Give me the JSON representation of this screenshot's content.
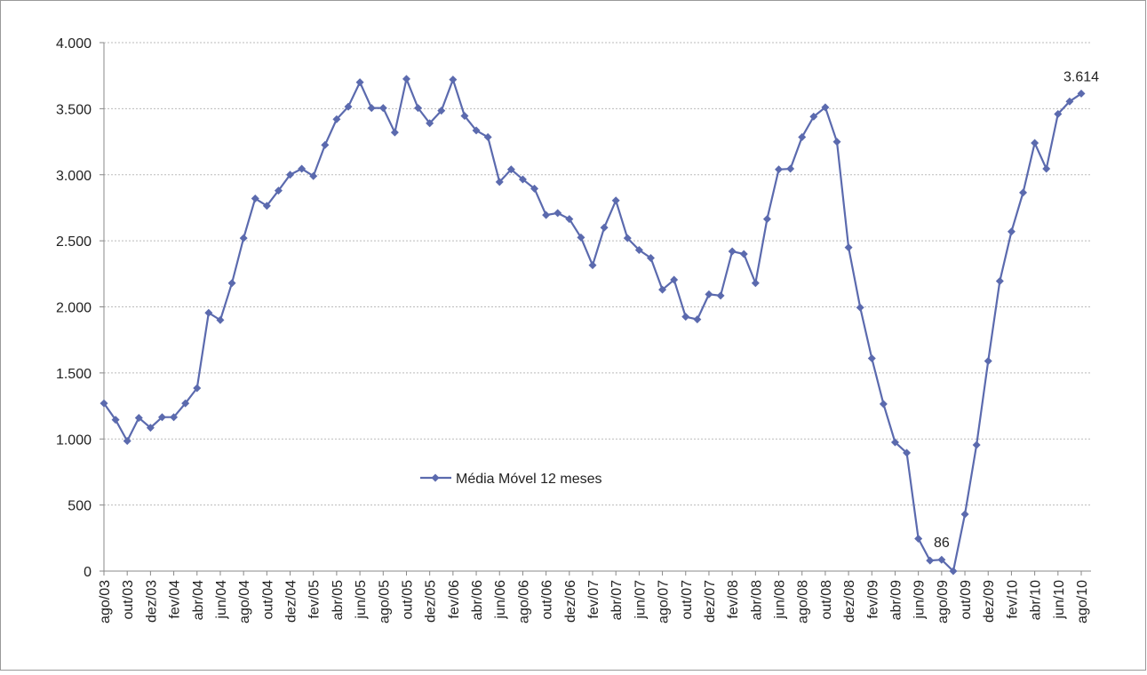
{
  "chart_data": {
    "type": "line",
    "categories": [
      "ago/03",
      null,
      "out/03",
      null,
      "dez/03",
      null,
      "fev/04",
      null,
      "abr/04",
      null,
      "jun/04",
      null,
      "ago/04",
      null,
      "out/04",
      null,
      "dez/04",
      null,
      "fev/05",
      null,
      "abr/05",
      null,
      "jun/05",
      null,
      "ago/05",
      null,
      "out/05",
      null,
      "dez/05",
      null,
      "fev/06",
      null,
      "abr/06",
      null,
      "jun/06",
      null,
      "ago/06",
      null,
      "out/06",
      null,
      "dez/06",
      null,
      "fev/07",
      null,
      "abr/07",
      null,
      "jun/07",
      null,
      "ago/07",
      null,
      "out/07",
      null,
      "dez/07",
      null,
      "fev/08",
      null,
      "abr/08",
      null,
      "jun/08",
      null,
      "ago/08",
      null,
      "out/08",
      null,
      "dez/08",
      null,
      "fev/09",
      null,
      "abr/09",
      null,
      "jun/09",
      null,
      "ago/09",
      null,
      "out/09",
      null,
      "dez/09",
      null,
      "fev/10",
      null,
      "abr/10",
      null,
      "jun/10",
      null,
      "ago/10"
    ],
    "series": [
      {
        "name": "Média Móvel 12 meses",
        "color": "#5b6aae",
        "values": [
          1270,
          1145,
          985,
          1160,
          1085,
          1165,
          1165,
          1270,
          1385,
          1955,
          1900,
          2180,
          2520,
          2820,
          2765,
          2880,
          3000,
          3045,
          2990,
          3225,
          3420,
          3515,
          3700,
          3505,
          3505,
          3320,
          3725,
          3505,
          3390,
          3485,
          3720,
          3445,
          3335,
          3285,
          2945,
          3040,
          2965,
          2895,
          2695,
          2710,
          2665,
          2525,
          2315,
          2600,
          2805,
          2520,
          2430,
          2370,
          2130,
          2205,
          1925,
          1905,
          2095,
          2085,
          2420,
          2400,
          2180,
          2665,
          3040,
          3045,
          3285,
          3440,
          3510,
          3250,
          2450,
          1995,
          1610,
          1265,
          975,
          895,
          245,
          80,
          86,
          0,
          430,
          955,
          1590,
          2195,
          2570,
          2865,
          3240,
          3045,
          3460,
          3555,
          3614
        ],
        "value_labels": [
          null,
          null,
          null,
          null,
          null,
          null,
          null,
          null,
          null,
          null,
          null,
          null,
          null,
          null,
          null,
          null,
          null,
          null,
          null,
          null,
          null,
          null,
          null,
          null,
          null,
          null,
          null,
          null,
          null,
          null,
          null,
          null,
          null,
          null,
          null,
          null,
          null,
          null,
          null,
          null,
          null,
          null,
          null,
          null,
          null,
          null,
          null,
          null,
          null,
          null,
          null,
          null,
          null,
          null,
          null,
          null,
          null,
          null,
          null,
          null,
          null,
          null,
          null,
          null,
          null,
          null,
          null,
          null,
          null,
          null,
          null,
          null,
          "86",
          null,
          null,
          null,
          null,
          null,
          null,
          null,
          null,
          null,
          null,
          null,
          "3.614"
        ]
      }
    ],
    "ylim": [
      0,
      4000
    ],
    "yticks": [
      {
        "value": 0,
        "label": "0"
      },
      {
        "value": 500,
        "label": "500"
      },
      {
        "value": 1000,
        "label": "1.000"
      },
      {
        "value": 1500,
        "label": "1.500"
      },
      {
        "value": 2000,
        "label": "2.000"
      },
      {
        "value": 2500,
        "label": "2.500"
      },
      {
        "value": 3000,
        "label": "3.000"
      },
      {
        "value": 3500,
        "label": "3.500"
      },
      {
        "value": 4000,
        "label": "4.000"
      }
    ],
    "grid": true
  }
}
